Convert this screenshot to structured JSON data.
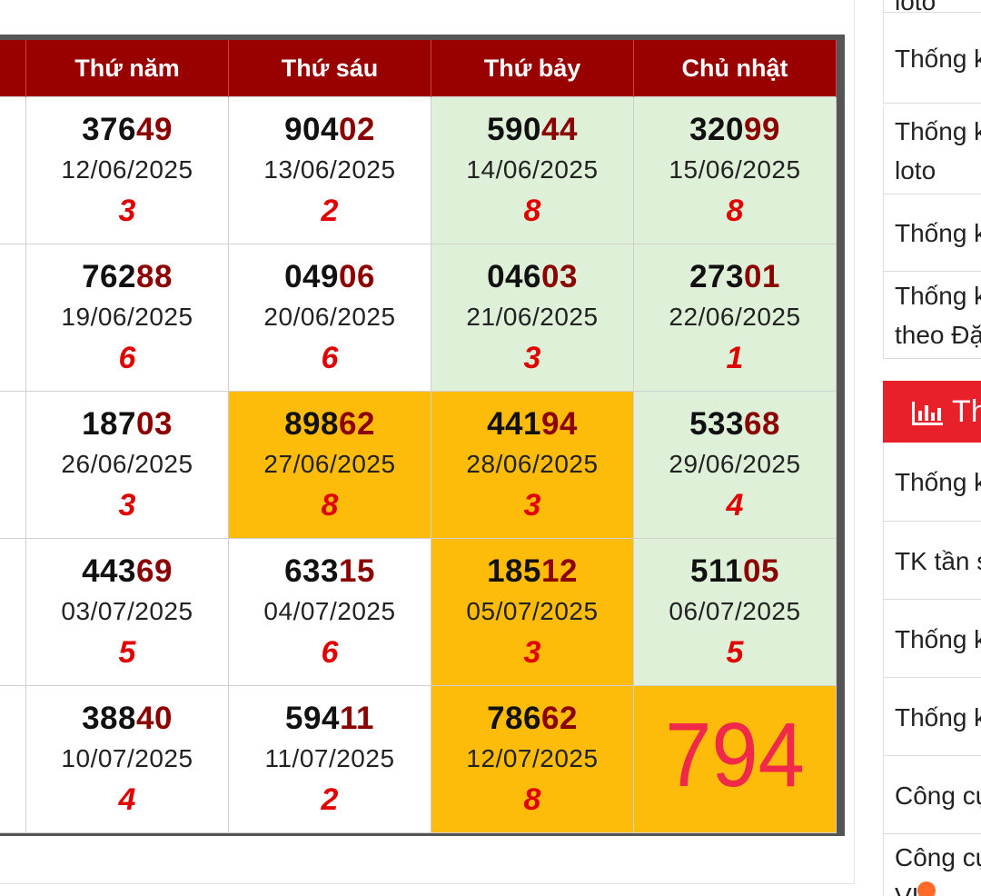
{
  "calendar": {
    "headers": [
      "",
      "Thứ năm",
      "Thứ sáu",
      "Thứ bảy",
      "Chủ nhật"
    ],
    "rows": [
      [
        {
          "head": "376",
          "tail": "49",
          "date": "12/06/2025",
          "sum": "3",
          "bg": "white"
        },
        {
          "head": "904",
          "tail": "02",
          "date": "13/06/2025",
          "sum": "2",
          "bg": "white"
        },
        {
          "head": "590",
          "tail": "44",
          "date": "14/06/2025",
          "sum": "8",
          "bg": "green"
        },
        {
          "head": "320",
          "tail": "99",
          "date": "15/06/2025",
          "sum": "8",
          "bg": "green"
        }
      ],
      [
        {
          "head": "762",
          "tail": "88",
          "date": "19/06/2025",
          "sum": "6",
          "bg": "white"
        },
        {
          "head": "049",
          "tail": "06",
          "date": "20/06/2025",
          "sum": "6",
          "bg": "white"
        },
        {
          "head": "046",
          "tail": "03",
          "date": "21/06/2025",
          "sum": "3",
          "bg": "green"
        },
        {
          "head": "273",
          "tail": "01",
          "date": "22/06/2025",
          "sum": "1",
          "bg": "green"
        }
      ],
      [
        {
          "head": "187",
          "tail": "03",
          "date": "26/06/2025",
          "sum": "3",
          "bg": "white"
        },
        {
          "head": "898",
          "tail": "62",
          "date": "27/06/2025",
          "sum": "8",
          "bg": "gold"
        },
        {
          "head": "441",
          "tail": "94",
          "date": "28/06/2025",
          "sum": "3",
          "bg": "gold"
        },
        {
          "head": "533",
          "tail": "68",
          "date": "29/06/2025",
          "sum": "4",
          "bg": "green"
        }
      ],
      [
        {
          "head": "443",
          "tail": "69",
          "date": "03/07/2025",
          "sum": "5",
          "bg": "white"
        },
        {
          "head": "633",
          "tail": "15",
          "date": "04/07/2025",
          "sum": "6",
          "bg": "white"
        },
        {
          "head": "185",
          "tail": "12",
          "date": "05/07/2025",
          "sum": "3",
          "bg": "gold"
        },
        {
          "head": "511",
          "tail": "05",
          "date": "06/07/2025",
          "sum": "5",
          "bg": "green"
        }
      ],
      [
        {
          "head": "388",
          "tail": "40",
          "date": "10/07/2025",
          "sum": "4",
          "bg": "white"
        },
        {
          "head": "594",
          "tail": "11",
          "date": "11/07/2025",
          "sum": "2",
          "bg": "white"
        },
        {
          "head": "786",
          "tail": "62",
          "date": "12/07/2025",
          "sum": "8",
          "bg": "gold"
        },
        {
          "big": "794",
          "bg": "gold"
        }
      ]
    ]
  },
  "sidebar": {
    "items_top": [
      {
        "lines": [
          "loto"
        ]
      },
      {
        "lines": [
          "Thống k"
        ]
      },
      {
        "lines": [
          "Thống k",
          "loto"
        ]
      },
      {
        "lines": [
          "Thống k"
        ]
      },
      {
        "lines": [
          "Thống k",
          "theo Đặ"
        ]
      }
    ],
    "section_title": "Th",
    "section_icon": "bar-chart-icon",
    "items_bottom": [
      {
        "lines": [
          "Thống k"
        ]
      },
      {
        "lines": [
          "TK tần s"
        ]
      },
      {
        "lines": [
          "Thống k"
        ]
      },
      {
        "lines": [
          "Thống k"
        ]
      },
      {
        "lines": [
          "Công cụ"
        ]
      },
      {
        "lines": [
          "Công cụ",
          "VI"
        ]
      }
    ]
  },
  "colors": {
    "header_red": "#990000",
    "highlight_green": "#dff0d8",
    "highlight_gold": "#fdbb0a",
    "sum_red": "#e00000",
    "big_number": "#f0294a",
    "sidebar_head": "#e8202a"
  }
}
